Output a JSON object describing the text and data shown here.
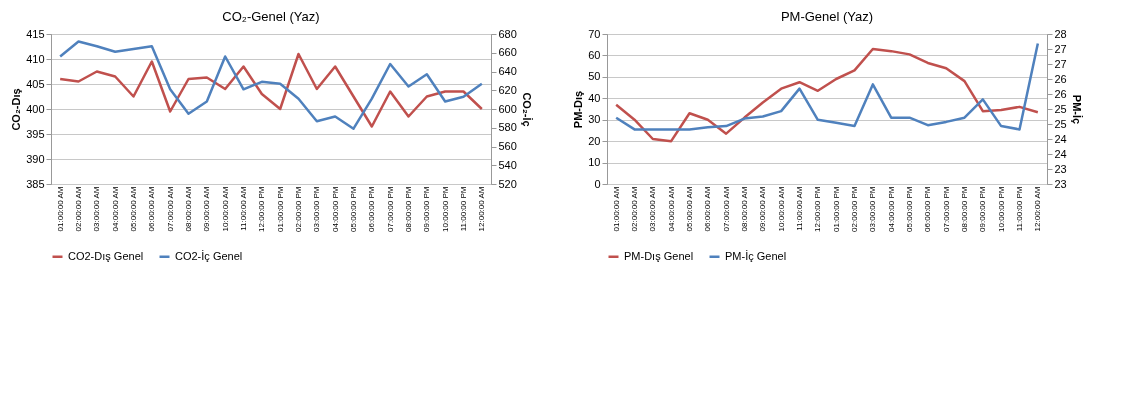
{
  "chart_data": [
    {
      "type": "line",
      "title": "CO₂-Genel (Yaz)",
      "ylabel": "CO₂-Dış",
      "y2label": "CO₂-İç",
      "categories": [
        "01:00:00 AM",
        "02:00:00 AM",
        "03:00:00 AM",
        "04:00:00 AM",
        "05:00:00 AM",
        "06:00:00 AM",
        "07:00:00 AM",
        "08:00:00 AM",
        "09:00:00 AM",
        "10:00:00 AM",
        "11:00:00 AM",
        "12:00:00 PM",
        "01:00:00 PM",
        "02:00:00 PM",
        "03:00:00 PM",
        "04:00:00 PM",
        "05:00:00 PM",
        "06:00:00 PM",
        "07:00:00 PM",
        "08:00:00 PM",
        "09:00:00 PM",
        "10:00:00 PM",
        "11:00:00 PM",
        "12:00:00 AM"
      ],
      "series": [
        {
          "name": "CO2-Dış Genel",
          "color": "#c0504d",
          "values": [
            406,
            405.5,
            407.5,
            406.5,
            402.5,
            409.5,
            399.5,
            406,
            406.3,
            404,
            408.5,
            403,
            400,
            411,
            404,
            408.5,
            402.5,
            396.5,
            403.5,
            398.5,
            402.5,
            403.5,
            403.5,
            400
          ]
        },
        {
          "name": "CO2-İç Genel",
          "color": "#4f81bd",
          "axis": "y2",
          "values": [
            656,
            672,
            667,
            661,
            664,
            667,
            621,
            595,
            608,
            656,
            621,
            629,
            627,
            611,
            587,
            592,
            579,
            611,
            648,
            624,
            637,
            608,
            613,
            627
          ]
        }
      ],
      "ylim": [
        385,
        415
      ],
      "yticks": [
        385,
        390,
        395,
        400,
        405,
        410,
        415
      ],
      "y2lim": [
        520,
        680
      ],
      "y2ticks": [
        520,
        540,
        560,
        580,
        600,
        620,
        640,
        660,
        680
      ],
      "grid": "y",
      "legend": "bottom",
      "marker": "none",
      "line_style": "solid"
    },
    {
      "type": "line",
      "title": "PM-Genel (Yaz)",
      "ylabel": "PM-Dış",
      "y2label": "PM-İç",
      "categories": [
        "01:00:00 AM",
        "02:00:00 AM",
        "03:00:00 AM",
        "04:00:00 AM",
        "05:00:00 AM",
        "06:00:00 AM",
        "07:00:00 AM",
        "08:00:00 AM",
        "09:00:00 AM",
        "10:00:00 AM",
        "11:00:00 AM",
        "12:00:00 PM",
        "01:00:00 PM",
        "02:00:00 PM",
        "03:00:00 PM",
        "04:00:00 PM",
        "05:00:00 PM",
        "06:00:00 PM",
        "07:00:00 PM",
        "08:00:00 PM",
        "09:00:00 PM",
        "10:00:00 PM",
        "11:00:00 PM",
        "12:00:00 AM"
      ],
      "series": [
        {
          "name": "PM-Dış Genel",
          "color": "#c0504d",
          "values": [
            37,
            30,
            21,
            20,
            33,
            30,
            23.5,
            31,
            38,
            44.5,
            47.5,
            43.5,
            49,
            53,
            63,
            62,
            60.5,
            56.5,
            54,
            48,
            34,
            34.5,
            36,
            33.5
          ]
        },
        {
          "name": "PM-İç Genel",
          "color": "#4f81bd",
          "axis": "y2",
          "values": [
            25.21,
            24.82,
            24.82,
            24.82,
            24.82,
            24.89,
            24.93,
            25.18,
            25.25,
            25.43,
            26.18,
            25.14,
            25.04,
            24.93,
            26.32,
            25.21,
            25.21,
            24.96,
            25.07,
            25.21,
            25.82,
            24.93,
            24.82,
            27.68
          ]
        }
      ],
      "ylim": [
        0,
        70
      ],
      "yticks": [
        0,
        10,
        20,
        30,
        40,
        50,
        60,
        70
      ],
      "y2lim": [
        23,
        28
      ],
      "y2ticks": [
        23,
        {
          "value": 23.5,
          "label": "23"
        },
        24,
        {
          "value": 24.5,
          "label": "24"
        },
        25,
        {
          "value": 25.5,
          "label": "25"
        },
        26,
        {
          "value": 26.5,
          "label": "26"
        },
        27,
        {
          "value": 27.5,
          "label": "27"
        },
        28
      ],
      "grid": "y",
      "legend": "bottom",
      "marker": "none",
      "line_style": "solid"
    }
  ]
}
